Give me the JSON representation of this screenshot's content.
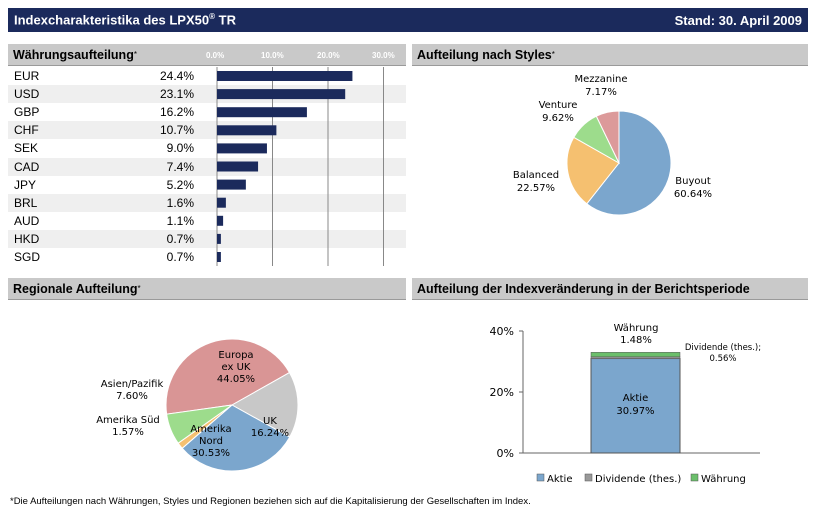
{
  "header": {
    "title": "Indexcharakteristika des LPX50",
    "title_sup": "®",
    "title_suffix": " TR",
    "date": "Stand: 30. April 2009"
  },
  "sections": {
    "currency": "Währungsaufteilung",
    "styles": "Aufteilung nach Styles",
    "regional": "Regionale Aufteilung",
    "index_change": "Aufteilung der Indexveränderung in der Berichtsperiode",
    "asterisk": "*"
  },
  "footnote": "*Die Aufteilungen nach Währungen, Styles und Regionen beziehen sich auf die Kapitalisierung der Gesellschaften im Index.",
  "colors": {
    "header_bg": "#1b2a5c",
    "bar": "#1b2a5c",
    "buyout": "#7ba6cd",
    "balanced": "#f5c070",
    "venture": "#9ddc8c",
    "mezzanine": "#dc9a9a",
    "europa": "#d99595",
    "uk": "#c8c8c8",
    "amerika_nord": "#7ba6cd",
    "amerika_sued": "#f5c070",
    "asien": "#9ddc8c",
    "aktie": "#7ba6cd",
    "dividende": "#999999",
    "waehrung": "#6bbf6b"
  },
  "chart_data": [
    {
      "type": "bar",
      "title": "Währungsaufteilung",
      "orientation": "horizontal",
      "categories": [
        "EUR",
        "USD",
        "GBP",
        "CHF",
        "SEK",
        "CAD",
        "JPY",
        "BRL",
        "AUD",
        "HKD",
        "SGD"
      ],
      "values": [
        24.4,
        23.1,
        16.2,
        10.7,
        9.0,
        7.4,
        5.2,
        1.6,
        1.1,
        0.7,
        0.7
      ],
      "labels": [
        "24.4%",
        "23.1%",
        "16.2%",
        "10.7%",
        "9.0%",
        "7.4%",
        "5.2%",
        "1.6%",
        "1.1%",
        "0.7%",
        "0.7%"
      ],
      "ticks": [
        "0.0%",
        "10.0%",
        "20.0%",
        "30.0%"
      ],
      "xlim": [
        0,
        30
      ]
    },
    {
      "type": "pie",
      "title": "Aufteilung nach Styles",
      "slices": [
        {
          "name": "Buyout",
          "value": 60.64,
          "label": "60.64%"
        },
        {
          "name": "Balanced",
          "value": 22.57,
          "label": "22.57%"
        },
        {
          "name": "Venture",
          "value": 9.62,
          "label": "9.62%"
        },
        {
          "name": "Mezzanine",
          "value": 7.17,
          "label": "7.17%"
        }
      ]
    },
    {
      "type": "pie",
      "title": "Regionale Aufteilung",
      "slices": [
        {
          "name": "Europa ex UK",
          "value": 44.05,
          "label": "44.05%"
        },
        {
          "name": "UK",
          "value": 16.24,
          "label": "16.24%"
        },
        {
          "name": "Amerika Nord",
          "value": 30.53,
          "label": "30.53%"
        },
        {
          "name": "Amerika Süd",
          "value": 1.57,
          "label": "1.57%"
        },
        {
          "name": "Asien/Pazifik",
          "value": 7.6,
          "label": "7.60%"
        }
      ]
    },
    {
      "type": "bar",
      "stacked": true,
      "title": "Aufteilung der Indexveränderung in der Berichtsperiode",
      "series": [
        {
          "name": "Aktie",
          "values": [
            30.97
          ],
          "label": "30.97%"
        },
        {
          "name": "Dividende (thes.)",
          "values": [
            0.56
          ],
          "label": "0.56%",
          "annotation": "Dividende (thes.);"
        },
        {
          "name": "Währung",
          "values": [
            1.48
          ],
          "label": "1.48%"
        }
      ],
      "ticks": [
        "0%",
        "20%",
        "40%"
      ],
      "ylim": [
        0,
        40
      ],
      "legend": [
        "Aktie",
        "Dividende (thes.)",
        "Währung"
      ]
    }
  ]
}
